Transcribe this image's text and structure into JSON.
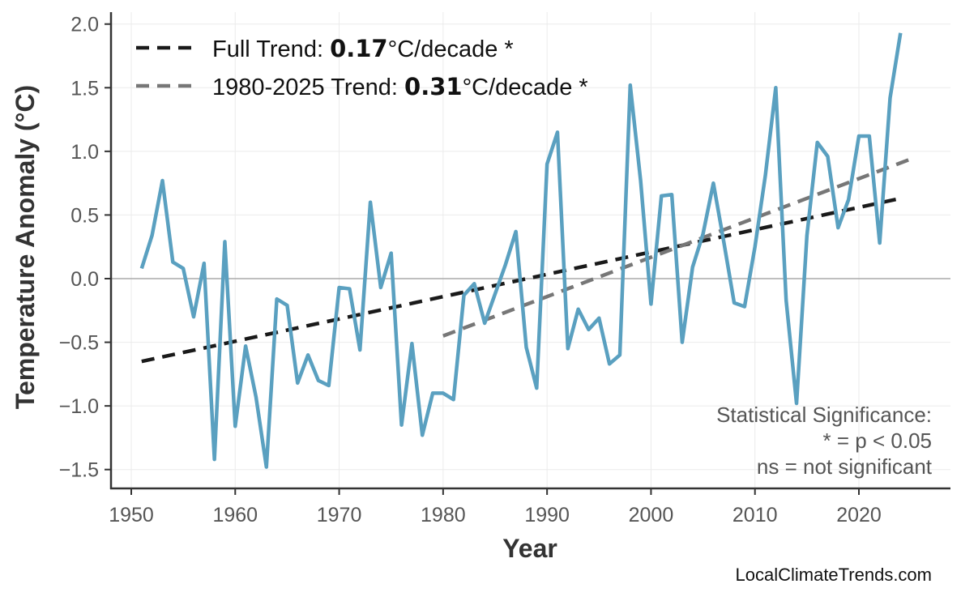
{
  "chart_data": {
    "type": "line",
    "xlabel": "Year",
    "ylabel": "Temperature Anomaly (°C)",
    "xlim": [
      1948,
      2029
    ],
    "ylim": [
      -1.6,
      2.05
    ],
    "xticks": [
      1950,
      1960,
      1970,
      1980,
      1990,
      2000,
      2010,
      2020
    ],
    "yticks": [
      2.0,
      1.5,
      1.0,
      0.5,
      0.0,
      -0.5,
      -1.0,
      -1.5
    ],
    "ytick_labels": [
      "2.0",
      "1.5",
      "1.0",
      "0.5",
      "0.0",
      "−0.5",
      "−1.0",
      "−1.5"
    ],
    "grid": true,
    "zero_line": true,
    "series": [
      {
        "color": "#5aa0c0",
        "x": [
          1951,
          1952,
          1953,
          1954,
          1955,
          1956,
          1957,
          1958,
          1959,
          1960,
          1961,
          1962,
          1963,
          1964,
          1965,
          1966,
          1967,
          1968,
          1969,
          1970,
          1971,
          1972,
          1973,
          1974,
          1975,
          1976,
          1977,
          1978,
          1979,
          1980,
          1981,
          1982,
          1983,
          1984,
          1985,
          1986,
          1987,
          1988,
          1989,
          1990,
          1991,
          1992,
          1993,
          1994,
          1995,
          1996,
          1997,
          1998,
          1999,
          2000,
          2001,
          2002,
          2003,
          2004,
          2005,
          2006,
          2007,
          2008,
          2009,
          2010,
          2011,
          2012,
          2013,
          2014,
          2015,
          2016,
          2017,
          2018,
          2019,
          2020,
          2021,
          2022,
          2023,
          2024
        ],
        "y": [
          0.08,
          0.34,
          0.77,
          0.13,
          0.08,
          -0.3,
          0.12,
          -1.42,
          0.29,
          -1.16,
          -0.53,
          -0.93,
          -1.48,
          -0.16,
          -0.21,
          -0.82,
          -0.6,
          -0.8,
          -0.84,
          -0.07,
          -0.08,
          -0.56,
          0.6,
          -0.07,
          0.2,
          -1.15,
          -0.51,
          -1.23,
          -0.9,
          -0.9,
          -0.95,
          -0.13,
          -0.04,
          -0.35,
          -0.12,
          0.11,
          0.37,
          -0.54,
          -0.86,
          0.9,
          1.15,
          -0.55,
          -0.24,
          -0.4,
          -0.31,
          -0.67,
          -0.6,
          1.52,
          0.77,
          -0.2,
          0.65,
          0.66,
          -0.5,
          0.09,
          0.35,
          0.75,
          0.29,
          -0.19,
          -0.22,
          0.25,
          0.81,
          1.5,
          -0.17,
          -0.98,
          0.34,
          1.07,
          0.96,
          0.4,
          0.62,
          1.12,
          1.12,
          0.28,
          1.42,
          1.93
        ]
      }
    ],
    "trends": [
      {
        "label_prefix": "Full Trend: ",
        "rate": "0.17",
        "label_suffix": "°C/decade *",
        "color": "#1a1a1a",
        "x": [
          1951,
          2024
        ],
        "y": [
          -0.65,
          0.63
        ]
      },
      {
        "label_prefix": "1980-2025 Trend: ",
        "rate": "0.31",
        "label_suffix": "°C/decade *",
        "color": "#777777",
        "x": [
          1980,
          2025
        ],
        "y": [
          -0.45,
          0.94
        ]
      }
    ],
    "legend_position": "top-left",
    "annotation": [
      "Statistical Significance:",
      "* = p < 0.05",
      "ns = not significant"
    ],
    "credit": "LocalClimateTrends.com"
  }
}
